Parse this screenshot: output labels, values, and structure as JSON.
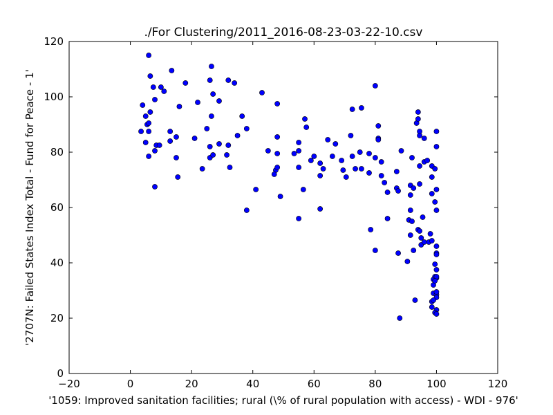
{
  "chart_data": {
    "type": "scatter",
    "title": "./For Clustering/2011_2016-08-23-03-22-10.csv",
    "xlabel": "'1059: Improved sanitation facilities; rural  (\\% of rural population with access) - WDI - 976'",
    "ylabel": "'2707N: Failed States Index Total - Fund for Peace - 1'",
    "xlim": [
      -20,
      120
    ],
    "ylim": [
      0,
      120
    ],
    "xticks": [
      -20,
      0,
      20,
      40,
      60,
      80,
      100,
      120
    ],
    "yticks": [
      0,
      20,
      40,
      60,
      80,
      100,
      120
    ],
    "grid": false,
    "marker_color": "#0000ff",
    "points": [
      [
        6,
        115
      ],
      [
        26.5,
        111
      ],
      [
        32,
        106
      ],
      [
        6.5,
        107.5
      ],
      [
        13.5,
        109.5
      ],
      [
        18,
        105
      ],
      [
        26,
        106
      ],
      [
        34,
        105
      ],
      [
        7.5,
        103.5
      ],
      [
        10,
        103.5
      ],
      [
        11,
        102
      ],
      [
        27,
        101
      ],
      [
        43,
        101.5
      ],
      [
        80,
        104
      ],
      [
        8,
        99
      ],
      [
        29,
        98.5
      ],
      [
        4,
        97
      ],
      [
        16,
        96.5
      ],
      [
        22,
        98
      ],
      [
        48,
        97.5
      ],
      [
        72.5,
        95.5
      ],
      [
        75.5,
        96
      ],
      [
        6.5,
        94.5
      ],
      [
        94,
        94.5
      ],
      [
        5,
        93
      ],
      [
        26.5,
        93
      ],
      [
        36.5,
        93
      ],
      [
        57,
        92
      ],
      [
        93.5,
        90.5
      ],
      [
        94,
        92
      ],
      [
        5.5,
        90
      ],
      [
        6,
        90.5
      ],
      [
        3.5,
        87.5
      ],
      [
        13,
        87.5
      ],
      [
        25,
        88.5
      ],
      [
        38,
        88.5
      ],
      [
        57.5,
        89
      ],
      [
        81,
        89.5
      ],
      [
        94.5,
        87.5
      ],
      [
        100,
        87.5
      ],
      [
        6,
        87.5
      ],
      [
        15,
        85.5
      ],
      [
        21,
        85
      ],
      [
        26,
        82
      ],
      [
        29,
        83
      ],
      [
        32,
        82.5
      ],
      [
        35,
        86
      ],
      [
        48,
        85.5
      ],
      [
        72,
        86
      ],
      [
        81,
        85
      ],
      [
        94.5,
        86
      ],
      [
        96,
        85
      ],
      [
        5,
        83.5
      ],
      [
        8.5,
        82.5
      ],
      [
        9.5,
        82.5
      ],
      [
        13,
        84
      ],
      [
        55,
        83.5
      ],
      [
        64.5,
        84.5
      ],
      [
        67,
        83
      ],
      [
        81,
        84.5
      ],
      [
        100,
        82
      ],
      [
        8,
        80.5
      ],
      [
        45,
        80.5
      ],
      [
        55,
        80.5
      ],
      [
        60,
        78.5
      ],
      [
        72.5,
        78.5
      ],
      [
        75,
        80
      ],
      [
        78,
        79.5
      ],
      [
        88.5,
        80.5
      ],
      [
        94.5,
        75
      ],
      [
        6,
        78.5
      ],
      [
        15,
        78
      ],
      [
        26,
        78
      ],
      [
        27,
        79
      ],
      [
        31.5,
        79
      ],
      [
        48,
        79.5
      ],
      [
        53.5,
        79.5
      ],
      [
        59,
        77
      ],
      [
        62,
        76
      ],
      [
        66,
        78.5
      ],
      [
        69,
        77
      ],
      [
        80,
        78
      ],
      [
        92,
        78
      ],
      [
        96,
        76.5
      ],
      [
        97,
        77
      ],
      [
        98.5,
        75
      ],
      [
        99.5,
        74
      ],
      [
        23.5,
        74
      ],
      [
        32.5,
        74.5
      ],
      [
        47.5,
        73.5
      ],
      [
        48,
        74.5
      ],
      [
        55,
        74.5
      ],
      [
        63,
        74
      ],
      [
        69.5,
        73.5
      ],
      [
        73.5,
        74
      ],
      [
        75.5,
        74
      ],
      [
        78,
        72.5
      ],
      [
        82,
        76.5
      ],
      [
        87,
        73
      ],
      [
        15.5,
        71
      ],
      [
        47,
        72
      ],
      [
        62,
        71.5
      ],
      [
        70.5,
        71
      ],
      [
        82,
        71.5
      ],
      [
        83,
        69
      ],
      [
        8,
        67.5
      ],
      [
        41,
        66.5
      ],
      [
        56.5,
        66.5
      ],
      [
        84,
        65.5
      ],
      [
        87,
        67
      ],
      [
        87.5,
        66
      ],
      [
        91.5,
        68
      ],
      [
        92.5,
        67
      ],
      [
        94.5,
        68.5
      ],
      [
        98.5,
        71
      ],
      [
        100,
        66.5
      ],
      [
        49,
        64
      ],
      [
        91.5,
        64.5
      ],
      [
        98.5,
        65
      ],
      [
        99.5,
        62
      ],
      [
        38,
        59
      ],
      [
        62,
        59.5
      ],
      [
        91.5,
        59
      ],
      [
        100,
        59
      ],
      [
        55,
        56
      ],
      [
        84,
        56
      ],
      [
        91,
        55.5
      ],
      [
        92,
        55
      ],
      [
        94,
        52
      ],
      [
        95.5,
        56.5
      ],
      [
        78.5,
        52
      ],
      [
        94.5,
        51.5
      ],
      [
        91.5,
        50
      ],
      [
        95,
        49
      ],
      [
        98,
        50.5
      ],
      [
        97.5,
        47.5
      ],
      [
        98.5,
        48
      ],
      [
        95,
        46.5
      ],
      [
        96,
        47.5
      ],
      [
        100,
        46
      ],
      [
        80,
        44.5
      ],
      [
        87.5,
        43.5
      ],
      [
        92.5,
        44.5
      ],
      [
        100,
        43.5
      ],
      [
        100,
        43
      ],
      [
        90.5,
        40.5
      ],
      [
        99.5,
        39.5
      ],
      [
        100,
        37.5
      ],
      [
        99.5,
        35
      ],
      [
        99,
        34
      ],
      [
        100,
        34.5
      ],
      [
        100,
        35
      ],
      [
        99,
        32
      ],
      [
        99.5,
        33.5
      ],
      [
        99,
        29
      ],
      [
        100,
        28.5
      ],
      [
        100,
        29.5
      ],
      [
        100,
        27.5
      ],
      [
        98.5,
        26
      ],
      [
        99,
        26.5
      ],
      [
        93,
        26.5
      ],
      [
        98.5,
        24
      ],
      [
        100,
        23
      ],
      [
        99.5,
        22
      ],
      [
        100,
        21.5
      ],
      [
        88,
        20
      ]
    ]
  }
}
